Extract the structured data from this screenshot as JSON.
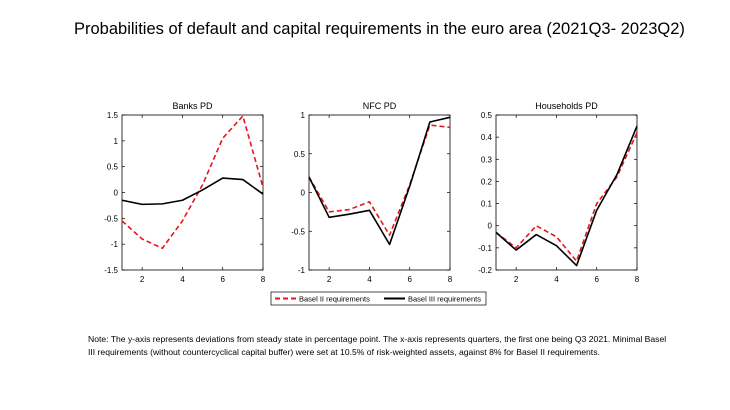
{
  "title": "Probabilities of default and capital requirements in the euro area (2021Q3- 2023Q2)",
  "note": "Note: The y-axis represents deviations from steady state in percentage point. The x-axis represents quarters, the first one being Q3 2021. Minimal Basel III requirements (without countercyclical capital buffer) were set at 10.5% of risk-weighted assets, against 8% for Basel II requirements.",
  "legend": {
    "series_a": "Basel II requirements",
    "series_b": "Basel III requirements"
  },
  "colors": {
    "basel2": "#e8141b",
    "basel3": "#000000",
    "axis": "#000000"
  },
  "chart_data": [
    {
      "type": "line",
      "title": "Banks PD",
      "xlim": [
        1,
        8
      ],
      "ylim": [
        -1.5,
        1.5
      ],
      "xticks": [
        2,
        4,
        6,
        8
      ],
      "yticks": [
        -1.5,
        -1,
        -0.5,
        0,
        0.5,
        1,
        1.5
      ],
      "ytick_labels": [
        "-1.5",
        "-1",
        "-0.5",
        "0",
        "0.5",
        "1",
        "1.5"
      ],
      "x": [
        1,
        2,
        3,
        4,
        5,
        6,
        7,
        8
      ],
      "series": [
        {
          "name": "Basel II requirements",
          "style": "dashed",
          "values": [
            -0.55,
            -0.9,
            -1.08,
            -0.55,
            0.15,
            1.05,
            1.48,
            0.1
          ]
        },
        {
          "name": "Basel III requirements",
          "style": "solid",
          "values": [
            -0.15,
            -0.23,
            -0.22,
            -0.15,
            0.05,
            0.28,
            0.25,
            -0.03
          ]
        }
      ]
    },
    {
      "type": "line",
      "title": "NFC PD",
      "xlim": [
        1,
        8
      ],
      "ylim": [
        -1,
        1
      ],
      "xticks": [
        2,
        4,
        6,
        8
      ],
      "yticks": [
        -1,
        -0.5,
        0,
        0.5,
        1
      ],
      "ytick_labels": [
        "-1",
        "-0.5",
        "0",
        "0.5",
        "1"
      ],
      "x": [
        1,
        2,
        3,
        4,
        5,
        6,
        7,
        8
      ],
      "series": [
        {
          "name": "Basel II requirements",
          "style": "dashed",
          "values": [
            0.2,
            -0.25,
            -0.22,
            -0.12,
            -0.55,
            0.1,
            0.87,
            0.84
          ]
        },
        {
          "name": "Basel III requirements",
          "style": "solid",
          "values": [
            0.2,
            -0.32,
            -0.28,
            -0.23,
            -0.67,
            0.08,
            0.91,
            0.97
          ]
        }
      ]
    },
    {
      "type": "line",
      "title": "Households PD",
      "xlim": [
        1,
        8
      ],
      "ylim": [
        -0.2,
        0.5
      ],
      "xticks": [
        2,
        4,
        6,
        8
      ],
      "yticks": [
        -0.2,
        -0.1,
        0,
        0.1,
        0.2,
        0.3,
        0.4,
        0.5
      ],
      "ytick_labels": [
        "-0.2",
        "-0.1",
        "0",
        "0.1",
        "0.2",
        "0.3",
        "0.4",
        "0.5"
      ],
      "x": [
        1,
        2,
        3,
        4,
        5,
        6,
        7,
        8
      ],
      "series": [
        {
          "name": "Basel II requirements",
          "style": "dashed",
          "values": [
            -0.03,
            -0.1,
            0.0,
            -0.05,
            -0.16,
            0.1,
            0.22,
            0.42
          ]
        },
        {
          "name": "Basel III requirements",
          "style": "solid",
          "values": [
            -0.03,
            -0.11,
            -0.04,
            -0.09,
            -0.18,
            0.07,
            0.23,
            0.45
          ]
        }
      ]
    }
  ]
}
